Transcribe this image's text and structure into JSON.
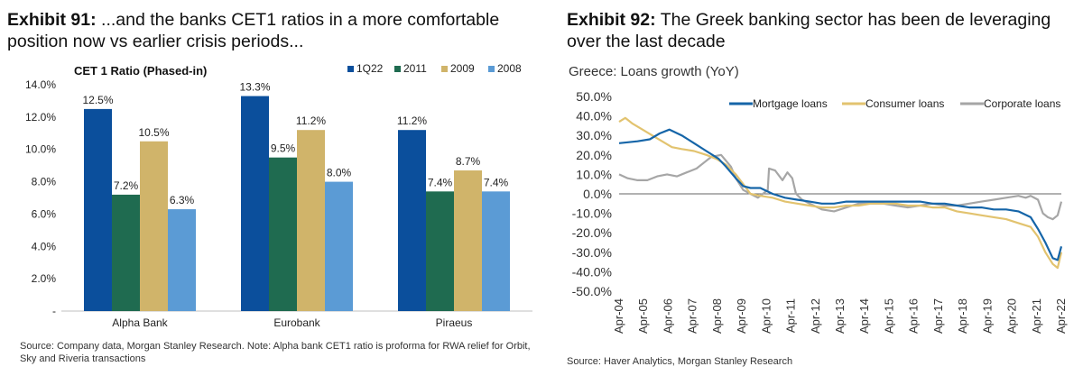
{
  "exhibit91": {
    "label": "Exhibit 91:",
    "title": "...and the banks CET1 ratios in a more comfortable position now vs earlier crisis periods...",
    "source": "Source: Company data, Morgan Stanley Research. Note: Alpha bank CET1 ratio is proforma for RWA relief for Orbit, Sky and Riveria transactions"
  },
  "exhibit92": {
    "label": "Exhibit 92:",
    "title": "The Greek banking sector has been de leveraging over the last decade",
    "source": "Source: Haver Analytics, Morgan Stanley Research"
  },
  "chart_data": [
    {
      "type": "bar",
      "title": "CET 1 Ratio (Phased-in)",
      "categories": [
        "Alpha Bank",
        "Eurobank",
        "Piraeus"
      ],
      "series": [
        {
          "name": "1Q22",
          "color": "#0b4f9c",
          "values": [
            12.5,
            13.3,
            11.2
          ],
          "labels": [
            "12.5%",
            "13.3%",
            "11.2%"
          ]
        },
        {
          "name": "2011",
          "color": "#1f6b50",
          "values": [
            7.2,
            9.5,
            7.4
          ],
          "labels": [
            "7.2%",
            "9.5%",
            "7.4%"
          ]
        },
        {
          "name": "2009",
          "color": "#d0b46a",
          "values": [
            10.5,
            11.2,
            8.7
          ],
          "labels": [
            "10.5%",
            "11.2%",
            "8.7%"
          ]
        },
        {
          "name": "2008",
          "color": "#5b9bd5",
          "values": [
            6.3,
            8.0,
            7.4
          ],
          "labels": [
            "6.3%",
            "8.0%",
            "7.4%"
          ]
        }
      ],
      "ylim": [
        0,
        14
      ],
      "yticks": [
        0,
        2,
        4,
        6,
        8,
        10,
        12,
        14
      ],
      "ytick_labels": [
        "-",
        "2.0%",
        "4.0%",
        "6.0%",
        "8.0%",
        "10.0%",
        "12.0%",
        "14.0%"
      ],
      "legend": "top-right",
      "xlabel": "",
      "ylabel": ""
    },
    {
      "type": "line",
      "title": "Greece: Loans growth (YoY)",
      "x_start": 2004.25,
      "x_end": 2022.25,
      "x_tick_values": [
        2004.25,
        2005.25,
        2006.25,
        2007.25,
        2008.25,
        2009.25,
        2010.25,
        2011.25,
        2012.25,
        2013.25,
        2014.25,
        2015.25,
        2016.25,
        2017.25,
        2018.25,
        2019.25,
        2020.25,
        2021.25,
        2022.25
      ],
      "x_tick_labels": [
        "Apr-04",
        "Apr-05",
        "Apr-06",
        "Apr-07",
        "Apr-08",
        "Apr-09",
        "Apr-10",
        "Apr-11",
        "Apr-12",
        "Apr-13",
        "Apr-14",
        "Apr-15",
        "Apr-16",
        "Apr-17",
        "Apr-18",
        "Apr-19",
        "Apr-20",
        "Apr-21",
        "Apr-22"
      ],
      "ylim": [
        -50,
        50
      ],
      "yticks": [
        -50,
        -40,
        -30,
        -20,
        -10,
        0,
        10,
        20,
        30,
        40,
        50
      ],
      "ytick_labels": [
        "-50.0%",
        "-40.0%",
        "-30.0%",
        "-20.0%",
        "-10.0%",
        "0.0%",
        "10.0%",
        "20.0%",
        "30.0%",
        "40.0%",
        "50.0%"
      ],
      "legend": "top",
      "series": [
        {
          "name": "Mortgage loans",
          "color": "#1565a8",
          "x": [
            2004.25,
            2005.0,
            2005.5,
            2005.9,
            2006.3,
            2006.8,
            2007.3,
            2007.8,
            2008.3,
            2008.6,
            2009.0,
            2009.3,
            2009.6,
            2010.0,
            2010.5,
            2011.0,
            2011.5,
            2012.0,
            2012.5,
            2013.0,
            2013.5,
            2014.0,
            2014.5,
            2015.0,
            2015.5,
            2016.0,
            2016.5,
            2017.0,
            2017.5,
            2018.0,
            2018.5,
            2019.0,
            2019.5,
            2020.0,
            2020.5,
            2021.0,
            2021.3,
            2021.6,
            2021.9,
            2022.1,
            2022.25
          ],
          "y": [
            26,
            27,
            28,
            31,
            33,
            30,
            26,
            22,
            18,
            14,
            8,
            4,
            3,
            3,
            0,
            -2,
            -3,
            -4,
            -5,
            -5,
            -4,
            -4,
            -4,
            -4,
            -4,
            -4,
            -4,
            -5,
            -5,
            -6,
            -7,
            -7,
            -8,
            -8,
            -9,
            -12,
            -18,
            -25,
            -33,
            -34,
            -27
          ]
        },
        {
          "name": "Consumer loans",
          "color": "#e2c36f",
          "x": [
            2004.25,
            2004.5,
            2004.8,
            2005.2,
            2005.6,
            2006.0,
            2006.4,
            2006.8,
            2007.3,
            2007.8,
            2008.2,
            2008.6,
            2009.0,
            2009.3,
            2009.6,
            2010.0,
            2010.5,
            2011.0,
            2011.5,
            2012.0,
            2012.5,
            2013.0,
            2013.5,
            2014.0,
            2014.5,
            2015.0,
            2015.5,
            2016.0,
            2016.5,
            2017.0,
            2017.5,
            2018.0,
            2018.5,
            2019.0,
            2019.5,
            2020.0,
            2020.5,
            2021.0,
            2021.3,
            2021.6,
            2021.9,
            2022.1,
            2022.25
          ],
          "y": [
            37,
            39,
            36,
            33,
            30,
            27,
            24,
            23,
            22,
            20,
            18,
            15,
            10,
            5,
            0,
            -1,
            -2,
            -4,
            -5,
            -6,
            -7,
            -7,
            -6,
            -6,
            -5,
            -5,
            -5,
            -6,
            -6,
            -7,
            -7,
            -9,
            -10,
            -11,
            -12,
            -13,
            -15,
            -17,
            -22,
            -30,
            -36,
            -38,
            -30
          ]
        },
        {
          "name": "Corporate loans",
          "color": "#a6a6a6",
          "x": [
            2004.25,
            2004.6,
            2005.0,
            2005.4,
            2005.8,
            2006.2,
            2006.6,
            2007.0,
            2007.4,
            2007.8,
            2008.0,
            2008.4,
            2008.8,
            2009.0,
            2009.3,
            2009.6,
            2009.9,
            2010.1,
            2010.3,
            2010.35,
            2010.6,
            2010.9,
            2011.1,
            2011.3,
            2011.45,
            2011.7,
            2012.0,
            2012.5,
            2013.0,
            2013.5,
            2014.0,
            2014.5,
            2015.0,
            2015.5,
            2016.0,
            2016.5,
            2017.0,
            2017.5,
            2018.0,
            2018.5,
            2019.0,
            2019.5,
            2020.0,
            2020.5,
            2020.8,
            2021.0,
            2021.3,
            2021.5,
            2021.7,
            2021.9,
            2022.1,
            2022.25
          ],
          "y": [
            10,
            8,
            7,
            7,
            9,
            10,
            9,
            11,
            13,
            17,
            19,
            20,
            14,
            8,
            2,
            0,
            -2,
            0,
            2,
            13,
            12,
            7,
            11,
            8,
            0,
            -3,
            -5,
            -8,
            -9,
            -7,
            -5,
            -5,
            -5,
            -6,
            -7,
            -6,
            -5,
            -6,
            -6,
            -5,
            -4,
            -3,
            -2,
            -1,
            -2,
            -1,
            -3,
            -10,
            -12,
            -13,
            -11,
            -4
          ]
        }
      ],
      "xlabel": "",
      "ylabel": ""
    }
  ]
}
